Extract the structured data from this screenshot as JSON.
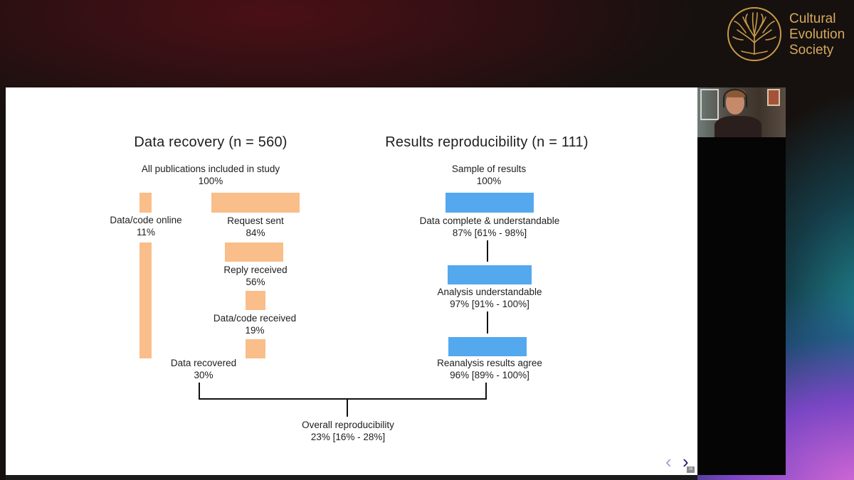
{
  "logo": {
    "lines": [
      "Cultural",
      "Evolution",
      "Society"
    ]
  },
  "left": {
    "heading": "Data recovery (n = 560)",
    "top_label": "All publications included in study",
    "top_pct": "100%",
    "online_label": "Data/code online",
    "online_pct": "11%",
    "request_label": "Request sent",
    "request_pct": "84%",
    "reply_label": "Reply received",
    "reply_pct": "56%",
    "received_label": "Data/code received",
    "received_pct": "19%",
    "recovered_label": "Data recovered",
    "recovered_pct": "30%"
  },
  "right": {
    "heading": "Results reproducibility (n = 111)",
    "top_label": "Sample of results",
    "top_pct": "100%",
    "complete_label": "Data complete & understandable",
    "complete_pct": "87% [61% - 98%]",
    "analysis_label": "Analysis understandable",
    "analysis_pct": "97% [91% - 100%]",
    "reanalysis_label": "Reanalysis results agree",
    "reanalysis_pct": "96% [89% - 100%]"
  },
  "overall": {
    "label": "Overall reproducibility",
    "pct": "23% [16% - 28%]"
  },
  "nav": {
    "prev": "‹",
    "next": "›",
    "slide_number": "15"
  },
  "colors": {
    "orange": "#f9be89",
    "blue": "#54a8ee",
    "logo_gold": "#d6a95c"
  }
}
